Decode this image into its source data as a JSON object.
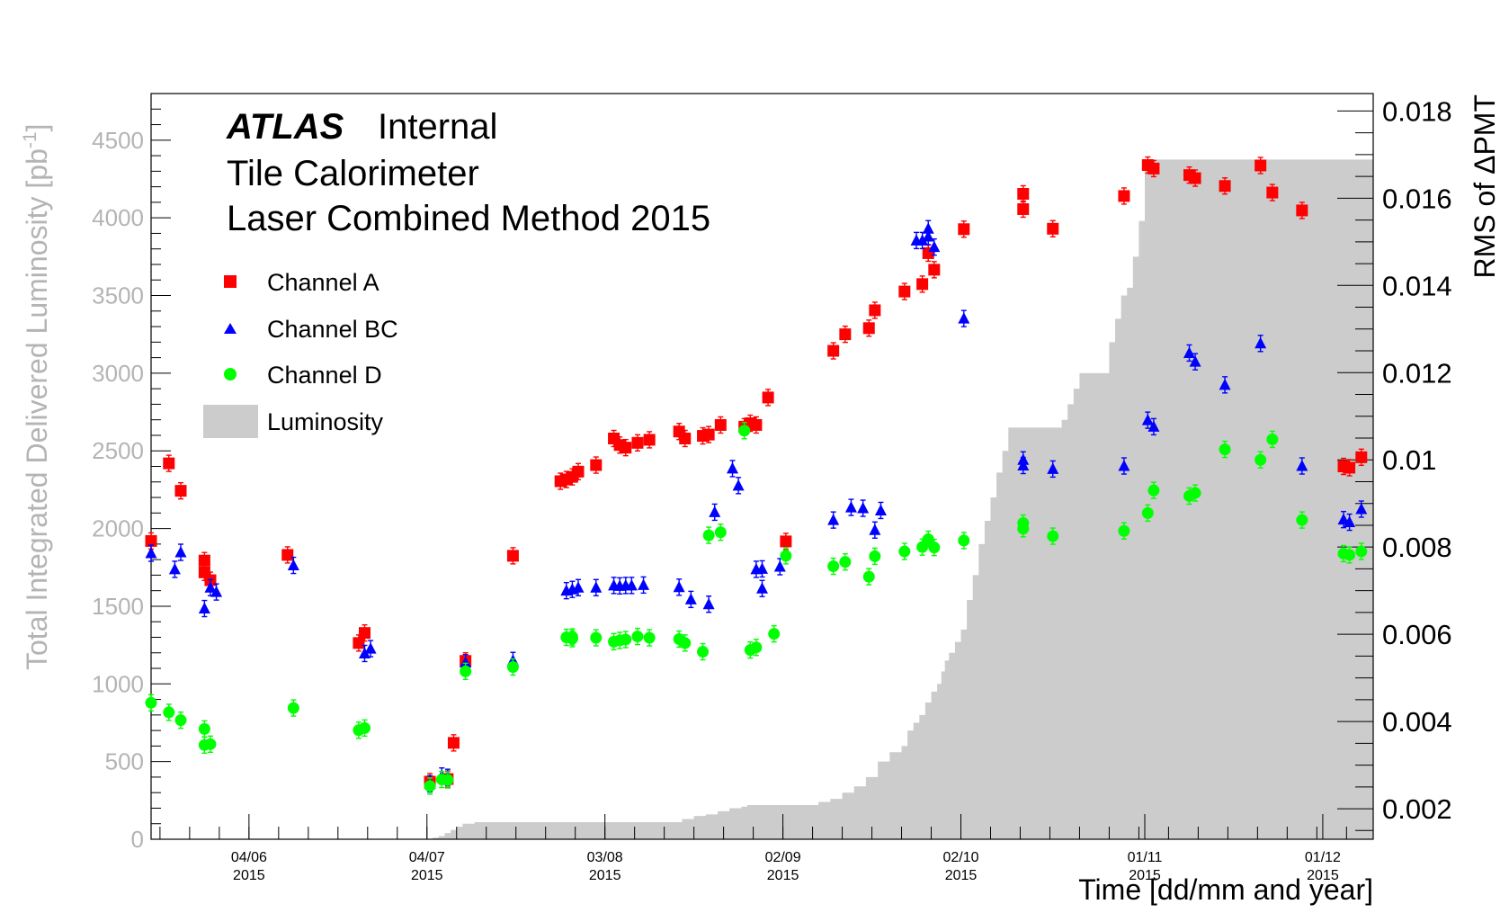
{
  "chart_data": {
    "type": "scatter",
    "labels": {
      "atlas": "ATLAS",
      "internal": "Internal",
      "line2": "Tile Calorimeter",
      "line3": "Laser Combined Method 2015"
    },
    "xlabel": "Time [dd/mm and year]",
    "ylabel_left": "Total Integrated Delivered Luminosity [pb",
    "ylabel_left_sup": "-1",
    "ylabel_left_close": "]",
    "ylabel_right": "RMS of ΔPMT",
    "x_range_days": [
      -2.5,
      203.5
    ],
    "x_ticks": [
      {
        "day": 14,
        "date": "04/06",
        "year": "2015"
      },
      {
        "day": 44,
        "date": "04/07",
        "year": "2015"
      },
      {
        "day": 74,
        "date": "03/08",
        "year": "2015"
      },
      {
        "day": 104,
        "date": "02/09",
        "year": "2015"
      },
      {
        "day": 134,
        "date": "02/10",
        "year": "2015"
      },
      {
        "day": 165,
        "date": "01/11",
        "year": "2015"
      },
      {
        "day": 195,
        "date": "01/12",
        "year": "2015"
      }
    ],
    "y_left": {
      "range": [
        0,
        4800
      ],
      "ticks": [
        0,
        500,
        1000,
        1500,
        2000,
        2500,
        3000,
        3500,
        4000,
        4500
      ]
    },
    "y_right": {
      "range": [
        0.0013,
        0.0184
      ],
      "ticks": [
        {
          "v": 0.002,
          "label": "0.002"
        },
        {
          "v": 0.004,
          "label": "0.004"
        },
        {
          "v": 0.006,
          "label": "0.006"
        },
        {
          "v": 0.008,
          "label": "0.008"
        },
        {
          "v": 0.01,
          "label": "0.01"
        },
        {
          "v": 0.012,
          "label": "0.012"
        },
        {
          "v": 0.014,
          "label": "0.014"
        },
        {
          "v": 0.016,
          "label": "0.016"
        },
        {
          "v": 0.018,
          "label": "0.018"
        }
      ]
    },
    "series": [
      {
        "name": "Channel A",
        "marker": "square",
        "color": "#ff0000",
        "points": [
          [
            -2.5,
            0.00814
          ],
          [
            0.5,
            0.00992
          ],
          [
            2.5,
            0.00929
          ],
          [
            6.5,
            0.00742
          ],
          [
            6.5,
            0.00769
          ],
          [
            7.5,
            0.00724
          ],
          [
            20.5,
            0.00782
          ],
          [
            32.5,
            0.0058
          ],
          [
            33.5,
            0.00603
          ],
          [
            44.5,
            0.00262
          ],
          [
            47.5,
            0.00268
          ],
          [
            48.5,
            0.00351
          ],
          [
            50.5,
            0.00539
          ],
          [
            58.5,
            0.0078
          ],
          [
            66.5,
            0.00951
          ],
          [
            67.5,
            0.00955
          ],
          [
            68.5,
            0.00961
          ],
          [
            69.5,
            0.00973
          ],
          [
            72.5,
            0.00988
          ],
          [
            75.5,
            0.01049
          ],
          [
            76.5,
            0.01034
          ],
          [
            77.5,
            0.01028
          ],
          [
            79.5,
            0.01039
          ],
          [
            81.5,
            0.01046
          ],
          [
            86.5,
            0.01065
          ],
          [
            87.5,
            0.01049
          ],
          [
            90.5,
            0.01055
          ],
          [
            91.5,
            0.01058
          ],
          [
            93.5,
            0.0108
          ],
          [
            97.5,
            0.01076
          ],
          [
            98.5,
            0.01084
          ],
          [
            99.5,
            0.0108
          ],
          [
            101.5,
            0.01143
          ],
          [
            104.5,
            0.00813
          ],
          [
            112.5,
            0.0125
          ],
          [
            114.5,
            0.01288
          ],
          [
            118.5,
            0.01302
          ],
          [
            119.5,
            0.01343
          ],
          [
            124.5,
            0.01386
          ],
          [
            127.5,
            0.01403
          ],
          [
            128.5,
            0.01474
          ],
          [
            129.5,
            0.01436
          ],
          [
            134.5,
            0.01529
          ],
          [
            144.5,
            0.01575
          ],
          [
            144.5,
            0.0161
          ],
          [
            149.5,
            0.0153
          ],
          [
            161.5,
            0.01605
          ],
          [
            165.5,
            0.01676
          ],
          [
            166.5,
            0.01668
          ],
          [
            172.5,
            0.01653
          ],
          [
            173.5,
            0.01646
          ],
          [
            178.5,
            0.01628
          ],
          [
            184.5,
            0.01675
          ],
          [
            186.5,
            0.01613
          ],
          [
            191.5,
            0.01572
          ],
          [
            198.5,
            0.00985
          ],
          [
            199.5,
            0.00982
          ],
          [
            201.5,
            0.01006
          ]
        ]
      },
      {
        "name": "Channel BC",
        "marker": "triangle",
        "color": "#0000ff",
        "points": [
          [
            -2.5,
            0.00786
          ],
          [
            1.5,
            0.00749
          ],
          [
            2.5,
            0.00788
          ],
          [
            6.5,
            0.00659
          ],
          [
            7.5,
            0.00707
          ],
          [
            8.5,
            0.00697
          ],
          [
            21.5,
            0.00758
          ],
          [
            33.5,
            0.00556
          ],
          [
            34.5,
            0.00567
          ],
          [
            44.5,
            0.00257
          ],
          [
            46.5,
            0.00275
          ],
          [
            47.5,
            0.00272
          ],
          [
            50.5,
            0.00535
          ],
          [
            58.5,
            0.0054
          ],
          [
            67.5,
            0.007
          ],
          [
            68.5,
            0.00703
          ],
          [
            69.5,
            0.00707
          ],
          [
            72.5,
            0.00707
          ],
          [
            75.5,
            0.00712
          ],
          [
            76.5,
            0.00711
          ],
          [
            77.5,
            0.00712
          ],
          [
            78.5,
            0.00712
          ],
          [
            80.5,
            0.00713
          ],
          [
            86.5,
            0.00708
          ],
          [
            88.5,
            0.0068
          ],
          [
            91.5,
            0.00669
          ],
          [
            92.5,
            0.0088
          ],
          [
            95.5,
            0.0098
          ],
          [
            96.5,
            0.00941
          ],
          [
            99.5,
            0.00749
          ],
          [
            100.5,
            0.0075
          ],
          [
            100.5,
            0.00705
          ],
          [
            103.5,
            0.00755
          ],
          [
            112.5,
            0.00862
          ],
          [
            115.5,
            0.00891
          ],
          [
            117.5,
            0.00889
          ],
          [
            119.5,
            0.00839
          ],
          [
            120.5,
            0.00884
          ],
          [
            126.5,
            0.01503
          ],
          [
            127.5,
            0.01503
          ],
          [
            128.5,
            0.01512
          ],
          [
            128.5,
            0.0153
          ],
          [
            129.5,
            0.01488
          ],
          [
            134.5,
            0.01324
          ],
          [
            144.5,
            0.00987
          ],
          [
            144.5,
            0.01
          ],
          [
            149.5,
            0.00979
          ],
          [
            161.5,
            0.00986
          ],
          [
            165.5,
            0.01091
          ],
          [
            166.5,
            0.01076
          ],
          [
            172.5,
            0.01245
          ],
          [
            173.5,
            0.01225
          ],
          [
            178.5,
            0.01172
          ],
          [
            184.5,
            0.01267
          ],
          [
            191.5,
            0.00986
          ],
          [
            198.5,
            0.00863
          ],
          [
            199.5,
            0.00857
          ],
          [
            201.5,
            0.00887
          ]
        ]
      },
      {
        "name": "Channel D",
        "marker": "circle",
        "color": "#00ff00",
        "points": [
          [
            -2.5,
            0.00443
          ],
          [
            0.5,
            0.00421
          ],
          [
            2.5,
            0.00403
          ],
          [
            6.5,
            0.00383
          ],
          [
            6.5,
            0.00346
          ],
          [
            7.5,
            0.00348
          ],
          [
            21.5,
            0.00431
          ],
          [
            32.5,
            0.0038
          ],
          [
            33.5,
            0.00385
          ],
          [
            44.5,
            0.00252
          ],
          [
            46.5,
            0.00267
          ],
          [
            47.5,
            0.00266
          ],
          [
            50.5,
            0.00515
          ],
          [
            58.5,
            0.00525
          ],
          [
            67.5,
            0.00593
          ],
          [
            68.5,
            0.00594
          ],
          [
            68.5,
            0.0059
          ],
          [
            72.5,
            0.00592
          ],
          [
            75.5,
            0.00583
          ],
          [
            76.5,
            0.00586
          ],
          [
            77.5,
            0.00588
          ],
          [
            79.5,
            0.00595
          ],
          [
            81.5,
            0.00592
          ],
          [
            86.5,
            0.00589
          ],
          [
            87.5,
            0.0058
          ],
          [
            90.5,
            0.0056
          ],
          [
            91.5,
            0.00827
          ],
          [
            93.5,
            0.00834
          ],
          [
            97.5,
            0.01067
          ],
          [
            98.5,
            0.00564
          ],
          [
            99.5,
            0.0057
          ],
          [
            102.5,
            0.00601
          ],
          [
            104.5,
            0.0078
          ],
          [
            112.5,
            0.00756
          ],
          [
            114.5,
            0.00766
          ],
          [
            118.5,
            0.00732
          ],
          [
            119.5,
            0.00779
          ],
          [
            124.5,
            0.0079
          ],
          [
            127.5,
            0.008
          ],
          [
            128.5,
            0.00818
          ],
          [
            129.5,
            0.00799
          ],
          [
            134.5,
            0.00815
          ],
          [
            144.5,
            0.00842
          ],
          [
            144.5,
            0.00855
          ],
          [
            149.5,
            0.00825
          ],
          [
            161.5,
            0.00837
          ],
          [
            165.5,
            0.00878
          ],
          [
            166.5,
            0.0093
          ],
          [
            172.5,
            0.00917
          ],
          [
            173.5,
            0.00924
          ],
          [
            178.5,
            0.01024
          ],
          [
            184.5,
            0.01
          ],
          [
            186.5,
            0.01047
          ],
          [
            191.5,
            0.00862
          ],
          [
            198.5,
            0.00785
          ],
          [
            199.5,
            0.00782
          ],
          [
            201.5,
            0.0079
          ]
        ]
      }
    ],
    "luminosity": {
      "name": "Luminosity",
      "color": "#cccccc",
      "steps": [
        [
          -2.5,
          0
        ],
        [
          44,
          0
        ],
        [
          45,
          10
        ],
        [
          46,
          20
        ],
        [
          47,
          40
        ],
        [
          48,
          60
        ],
        [
          49,
          80
        ],
        [
          50,
          100
        ],
        [
          52,
          110
        ],
        [
          83,
          110
        ],
        [
          87,
          130
        ],
        [
          89,
          150
        ],
        [
          91,
          160
        ],
        [
          93,
          180
        ],
        [
          95,
          200
        ],
        [
          97,
          210
        ],
        [
          98,
          220
        ],
        [
          109,
          220
        ],
        [
          110,
          240
        ],
        [
          112,
          260
        ],
        [
          114,
          300
        ],
        [
          116,
          340
        ],
        [
          118,
          400
        ],
        [
          120,
          500
        ],
        [
          122,
          560
        ],
        [
          124,
          600
        ],
        [
          125,
          700
        ],
        [
          126,
          750
        ],
        [
          127,
          800
        ],
        [
          128,
          880
        ],
        [
          129,
          950
        ],
        [
          130,
          1000
        ],
        [
          130.7,
          1080
        ],
        [
          131.3,
          1150
        ],
        [
          132,
          1200
        ],
        [
          133,
          1270
        ],
        [
          134,
          1350
        ],
        [
          135,
          1540
        ],
        [
          136,
          1700
        ],
        [
          137,
          1900
        ],
        [
          138,
          2050
        ],
        [
          139,
          2200
        ],
        [
          140,
          2360
        ],
        [
          141,
          2500
        ],
        [
          142,
          2650
        ],
        [
          150,
          2650
        ],
        [
          151,
          2700
        ],
        [
          152,
          2800
        ],
        [
          153,
          2900
        ],
        [
          154,
          3000
        ],
        [
          158,
          3000
        ],
        [
          159,
          3200
        ],
        [
          160,
          3350
        ],
        [
          161,
          3500
        ],
        [
          162,
          3550
        ],
        [
          163,
          3750
        ],
        [
          164,
          3980
        ],
        [
          165,
          4375
        ],
        [
          203.5,
          4375
        ]
      ]
    },
    "legend": {
      "placement": "top-left"
    }
  }
}
